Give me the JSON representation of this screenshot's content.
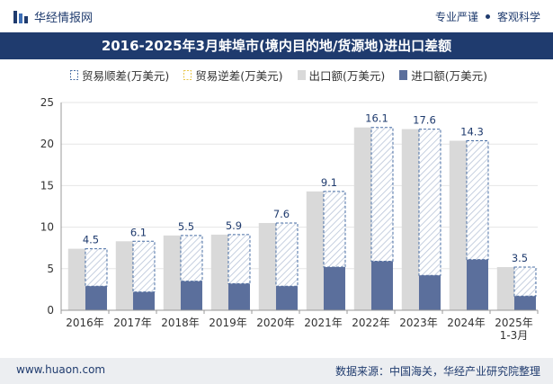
{
  "header": {
    "brand_name": "华经情报网",
    "tagline_1": "专业严谨",
    "tagline_2": "客观科学"
  },
  "footer": {
    "website": "www.huaon.com",
    "source": "数据来源：中国海关，华经产业研究院整理"
  },
  "colors": {
    "header_bar": "#1f3b6e",
    "export_bar": "#d9d9d9",
    "import_bar": "#5b6f9c",
    "surplus_border": "#4a6fa5",
    "deficit_border": "#e8c64a"
  },
  "chart_data": {
    "type": "bar",
    "title": "2016-2025年3月蚌埠市(境内目的地/货源地)进出口差额",
    "categories": [
      "2016年",
      "2017年",
      "2018年",
      "2019年",
      "2020年",
      "2021年",
      "2022年",
      "2023年",
      "2024年",
      "2025年\n1-3月"
    ],
    "ylim": [
      0,
      25
    ],
    "yticks": [
      0,
      5,
      10,
      15,
      20,
      25
    ],
    "legend_position": "top-center",
    "series": [
      {
        "name": "贸易顺差(万美元)",
        "values": [
          4.5,
          6.1,
          5.5,
          5.9,
          7.6,
          9.1,
          16.1,
          17.6,
          14.3,
          3.5
        ]
      },
      {
        "name": "贸易逆差(万美元)",
        "values": [
          0,
          0,
          0,
          0,
          0,
          0,
          0,
          0,
          0,
          0
        ]
      },
      {
        "name": "出口额(万美元)",
        "values": [
          7.4,
          8.3,
          9.0,
          9.1,
          10.5,
          14.3,
          22.0,
          21.8,
          20.4,
          5.2
        ]
      },
      {
        "name": "进口额(万美元)",
        "values": [
          2.9,
          2.2,
          3.5,
          3.2,
          2.9,
          5.2,
          5.9,
          4.2,
          6.1,
          1.7
        ]
      }
    ],
    "data_labels": [
      "4.5",
      "6.1",
      "5.5",
      "5.9",
      "7.6",
      "9.1",
      "16.1",
      "17.6",
      "14.3",
      "3.5"
    ]
  }
}
